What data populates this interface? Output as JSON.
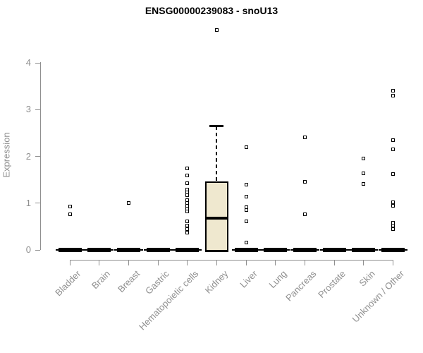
{
  "chart_data": {
    "type": "boxplot",
    "title": "ENSG00000239083 - snoU13",
    "ylabel": "Expression",
    "xlabel": "",
    "ylim": [
      0,
      4
    ],
    "yticks": [
      0,
      1,
      2,
      3,
      4
    ],
    "grid": false,
    "legend": "none",
    "axis_color": "#8f8f8f",
    "label_color": "#8f8f8f",
    "box_fill_color": "#efe8cf",
    "data_color": "#000000",
    "categories": [
      {
        "label": "Bladder",
        "box": {
          "q1": 0,
          "median": 0,
          "q3": 0,
          "whisker_low": 0,
          "whisker_high": 0
        },
        "outliers": [
          0.93,
          0.76
        ]
      },
      {
        "label": "Brain",
        "box": {
          "q1": 0,
          "median": 0,
          "q3": 0,
          "whisker_low": 0,
          "whisker_high": 0
        },
        "outliers": []
      },
      {
        "label": "Breast",
        "box": {
          "q1": 0,
          "median": 0,
          "q3": 0,
          "whisker_low": 0,
          "whisker_high": 0
        },
        "outliers": [
          1.0
        ]
      },
      {
        "label": "Gastric",
        "box": {
          "q1": 0,
          "median": 0,
          "q3": 0,
          "whisker_low": 0,
          "whisker_high": 0
        },
        "outliers": []
      },
      {
        "label": "Hematopoietic cells",
        "box": {
          "q1": 0,
          "median": 0,
          "q3": 0,
          "whisker_low": 0,
          "whisker_high": 0
        },
        "outliers": [
          1.75,
          1.6,
          1.42,
          1.29,
          1.23,
          1.17,
          1.07,
          1.01,
          0.95,
          0.88,
          0.82,
          0.61,
          0.52,
          0.44,
          0.37
        ]
      },
      {
        "label": "Kidney",
        "box": {
          "q1": 0,
          "median": 0.68,
          "q3": 1.46,
          "whisker_low": 0,
          "whisker_high": 2.65
        },
        "outliers": [
          4.71
        ]
      },
      {
        "label": "Liver",
        "box": {
          "q1": 0,
          "median": 0,
          "q3": 0,
          "whisker_low": 0,
          "whisker_high": 0
        },
        "outliers": [
          2.2,
          1.39,
          1.14,
          0.92,
          0.86,
          0.61,
          0.16
        ]
      },
      {
        "label": "Lung",
        "box": {
          "q1": 0,
          "median": 0,
          "q3": 0,
          "whisker_low": 0,
          "whisker_high": 0
        },
        "outliers": []
      },
      {
        "label": "Pancreas",
        "box": {
          "q1": 0,
          "median": 0,
          "q3": 0,
          "whisker_low": 0,
          "whisker_high": 0
        },
        "outliers": [
          2.41,
          1.46,
          0.76
        ]
      },
      {
        "label": "Prostate",
        "box": {
          "q1": 0,
          "median": 0,
          "q3": 0,
          "whisker_low": 0,
          "whisker_high": 0
        },
        "outliers": []
      },
      {
        "label": "Skin",
        "box": {
          "q1": 0,
          "median": 0,
          "q3": 0,
          "whisker_low": 0,
          "whisker_high": 0
        },
        "outliers": [
          1.95,
          1.64,
          1.41
        ]
      },
      {
        "label": "Unknown / Other",
        "box": {
          "q1": 0,
          "median": 0,
          "q3": 0,
          "whisker_low": 0,
          "whisker_high": 0
        },
        "outliers": [
          3.41,
          3.3,
          2.35,
          2.16,
          1.62,
          1.02,
          0.94,
          0.58,
          0.52,
          0.45
        ]
      }
    ]
  }
}
